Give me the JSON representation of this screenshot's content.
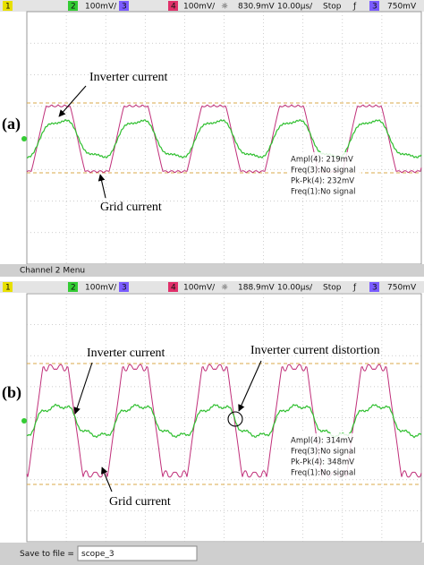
{
  "panels": [
    {
      "label": "(a)",
      "header": [
        {
          "text": "1",
          "color": "#e8e000"
        },
        {
          "text": "2",
          "color": "#33cc33"
        },
        {
          "text": "100mV/"
        },
        {
          "text": "3",
          "color": "#7a5cff"
        },
        {
          "text": "4",
          "color": "#e0306a"
        },
        {
          "text": "100mV/"
        },
        {
          "text": "☼"
        },
        {
          "text": "830.9mV"
        },
        {
          "text": "10.00µs/"
        },
        {
          "text": "Stop"
        },
        {
          "text": "ƒ"
        },
        {
          "text": "3",
          "color": "#7a5cff"
        },
        {
          "text": "750mV"
        }
      ],
      "annotations": [
        "Inverter current",
        "Grid current"
      ],
      "measurements": [
        "Ampl(4): 219mV",
        "Freq(3):No signal",
        "Pk-Pk(4): 232mV",
        "Freq(1):No signal"
      ],
      "footer": "Channel 2 Menu"
    },
    {
      "label": "(b)",
      "header": [
        {
          "text": "1",
          "color": "#e8e000"
        },
        {
          "text": "2",
          "color": "#33cc33"
        },
        {
          "text": "100mV/"
        },
        {
          "text": "3",
          "color": "#7a5cff"
        },
        {
          "text": "4",
          "color": "#e0306a"
        },
        {
          "text": "100mV/"
        },
        {
          "text": "☼"
        },
        {
          "text": "188.9mV"
        },
        {
          "text": "10.00µs/"
        },
        {
          "text": "Stop"
        },
        {
          "text": "ƒ"
        },
        {
          "text": "3",
          "color": "#7a5cff"
        },
        {
          "text": "750mV"
        }
      ],
      "annotations": [
        "Inverter current",
        "Inverter current distortion",
        "Grid current"
      ],
      "measurements": [
        "Ampl(4): 314mV",
        "Freq(3):No signal",
        "Pk-Pk(4): 348mV",
        "Freq(1):No signal"
      ],
      "footer": "Save to file =",
      "footer_value": "scope_3"
    }
  ]
}
